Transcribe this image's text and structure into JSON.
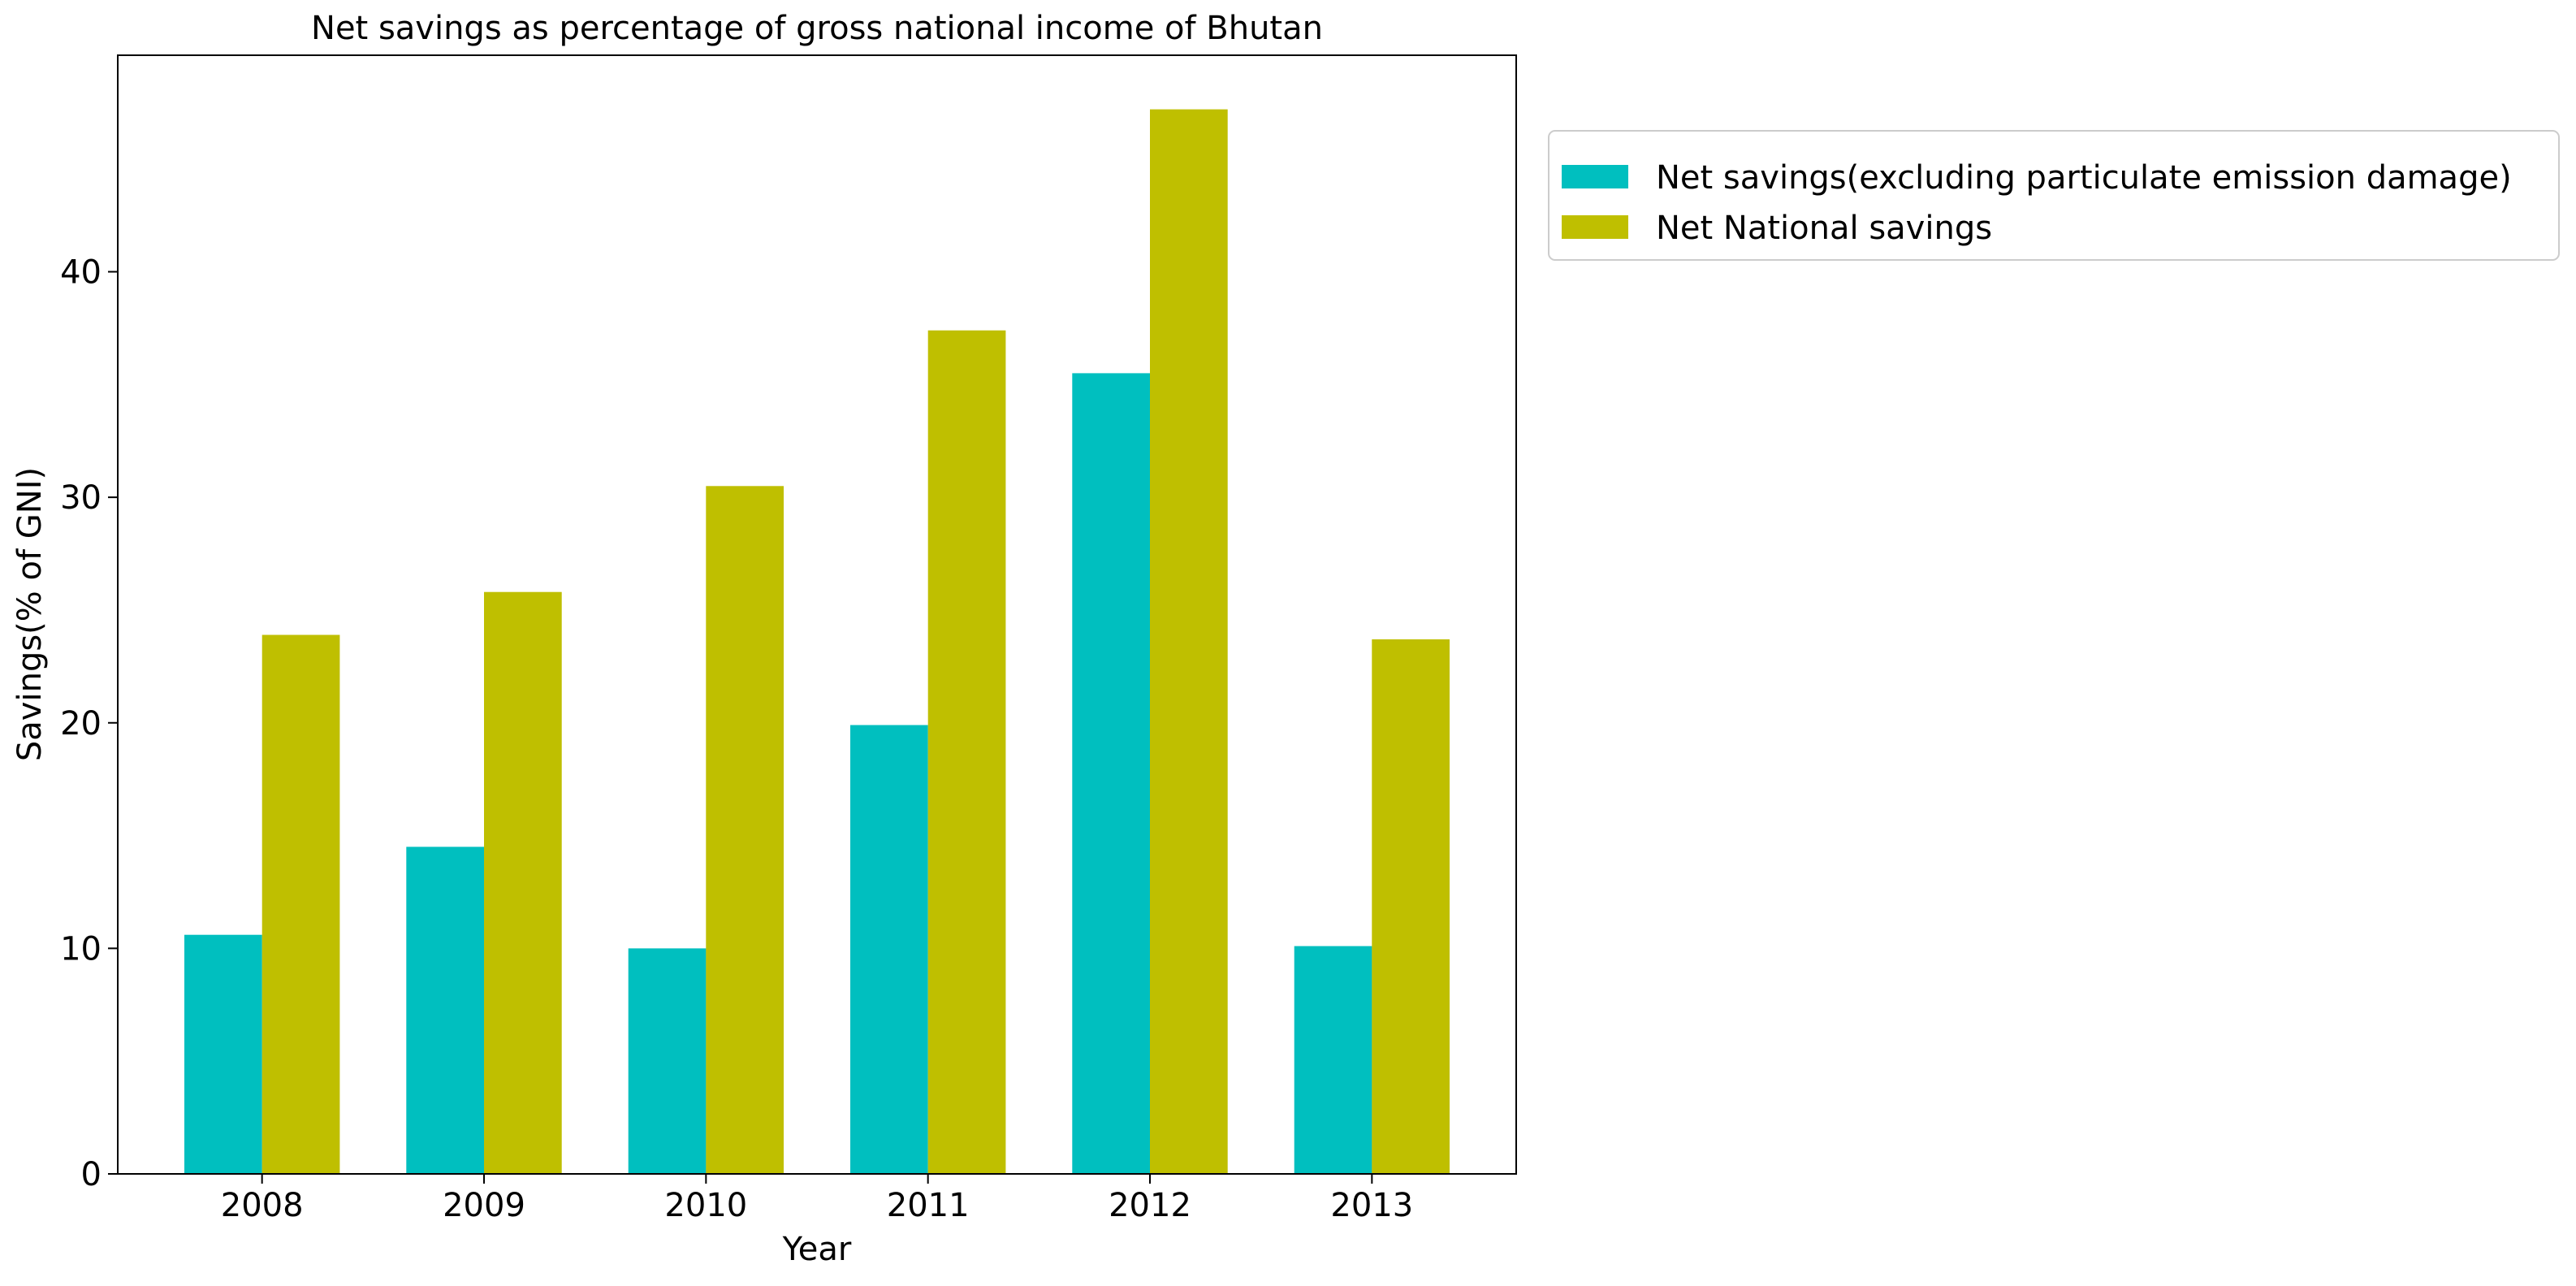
{
  "chart_data": {
    "type": "bar",
    "title": "Net savings as percentage of gross national income of Bhutan",
    "xlabel": "Year",
    "ylabel": "Savings(% of GNI)",
    "categories": [
      "2008",
      "2009",
      "2010",
      "2011",
      "2012",
      "2013"
    ],
    "series": [
      {
        "name": "Net savings(excluding particulate emission damage)",
        "color": "#00bfbf",
        "values": [
          10.6,
          14.5,
          10.0,
          19.9,
          35.5,
          10.1
        ]
      },
      {
        "name": "Net National savings",
        "color": "#bfbf00",
        "values": [
          23.9,
          25.8,
          30.5,
          37.4,
          47.2,
          23.7
        ]
      }
    ],
    "ylim": [
      0,
      49.6
    ],
    "yticks": [
      0,
      10,
      20,
      30,
      40
    ],
    "grid": false,
    "legend_position": "outside upper-right"
  }
}
